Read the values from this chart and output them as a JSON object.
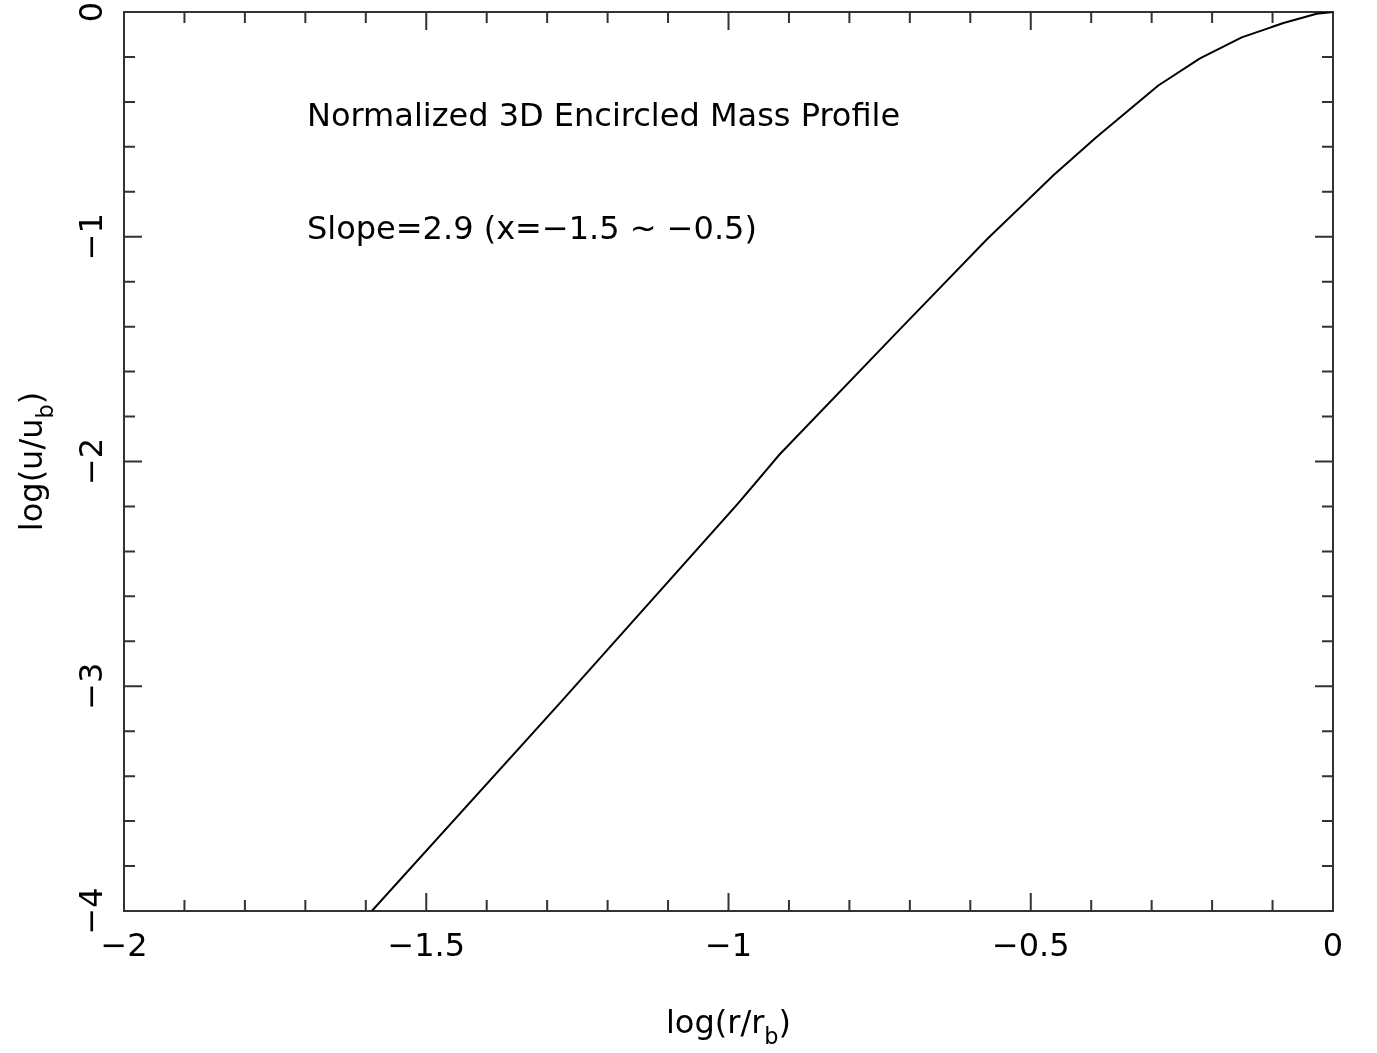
{
  "chart_data": {
    "type": "line",
    "xlabel": "log(r/r$_{b}$)",
    "ylabel": "log(u/u$_{b}$)",
    "annotations": [
      "Normalized 3D Encircled Mass Profile",
      "Slope=2.9 (x=−1.5 ~ −0.5)"
    ],
    "x": [
      -1.59,
      -1.279,
      -0.982,
      -0.916,
      -0.723,
      -0.572,
      -0.462,
      -0.392,
      -0.289,
      -0.22,
      -0.151,
      -0.082,
      -0.027,
      0
    ],
    "series": [
      {
        "color": "#000000",
        "values": [
          -4,
          -3.075,
          -2.18,
          -1.97,
          -1.43,
          -1.01,
          -0.725,
          -0.558,
          -0.327,
          -0.206,
          -0.113,
          -0.049,
          -0.008,
          0
        ]
      }
    ],
    "xlim": [
      -2,
      0
    ],
    "ylim": [
      -4,
      0
    ],
    "xticks": [
      {
        "value": -2,
        "label": "−2"
      },
      {
        "value": -1.9,
        "label": null
      },
      {
        "value": -1.8,
        "label": null
      },
      {
        "value": -1.7,
        "label": null
      },
      {
        "value": -1.6,
        "label": null
      },
      {
        "value": -1.5,
        "label": "−1.5"
      },
      {
        "value": -1.4,
        "label": null
      },
      {
        "value": -1.3,
        "label": null
      },
      {
        "value": -1.2,
        "label": null
      },
      {
        "value": -1.1,
        "label": null
      },
      {
        "value": -1,
        "label": "−1"
      },
      {
        "value": -0.9,
        "label": null
      },
      {
        "value": -0.8,
        "label": null
      },
      {
        "value": -0.7,
        "label": null
      },
      {
        "value": -0.6,
        "label": null
      },
      {
        "value": -0.5,
        "label": "−0.5"
      },
      {
        "value": -0.4,
        "label": null
      },
      {
        "value": -0.3,
        "label": null
      },
      {
        "value": -0.2,
        "label": null
      },
      {
        "value": -0.1,
        "label": null
      },
      0
    ],
    "yticks": [
      {
        "value": -4,
        "label": "−4"
      },
      {
        "value": -3.8,
        "label": null
      },
      {
        "value": -3.6,
        "label": null
      },
      {
        "value": -3.4,
        "label": null
      },
      {
        "value": -3.2,
        "label": null
      },
      {
        "value": -3,
        "label": "−3"
      },
      {
        "value": -2.8,
        "label": null
      },
      {
        "value": -2.6,
        "label": null
      },
      {
        "value": -2.4,
        "label": null
      },
      {
        "value": -2.2,
        "label": null
      },
      {
        "value": -2,
        "label": "−2"
      },
      {
        "value": -1.8,
        "label": null
      },
      {
        "value": -1.6,
        "label": null
      },
      {
        "value": -1.4,
        "label": null
      },
      {
        "value": -1.2,
        "label": null
      },
      {
        "value": -1,
        "label": "−1"
      },
      {
        "value": -0.8,
        "label": null
      },
      {
        "value": -0.6,
        "label": null
      },
      {
        "value": -0.4,
        "label": null
      },
      {
        "value": -0.2,
        "label": null
      },
      0
    ],
    "grid": false,
    "legend": false,
    "marker": "none",
    "line_style": "solid"
  }
}
